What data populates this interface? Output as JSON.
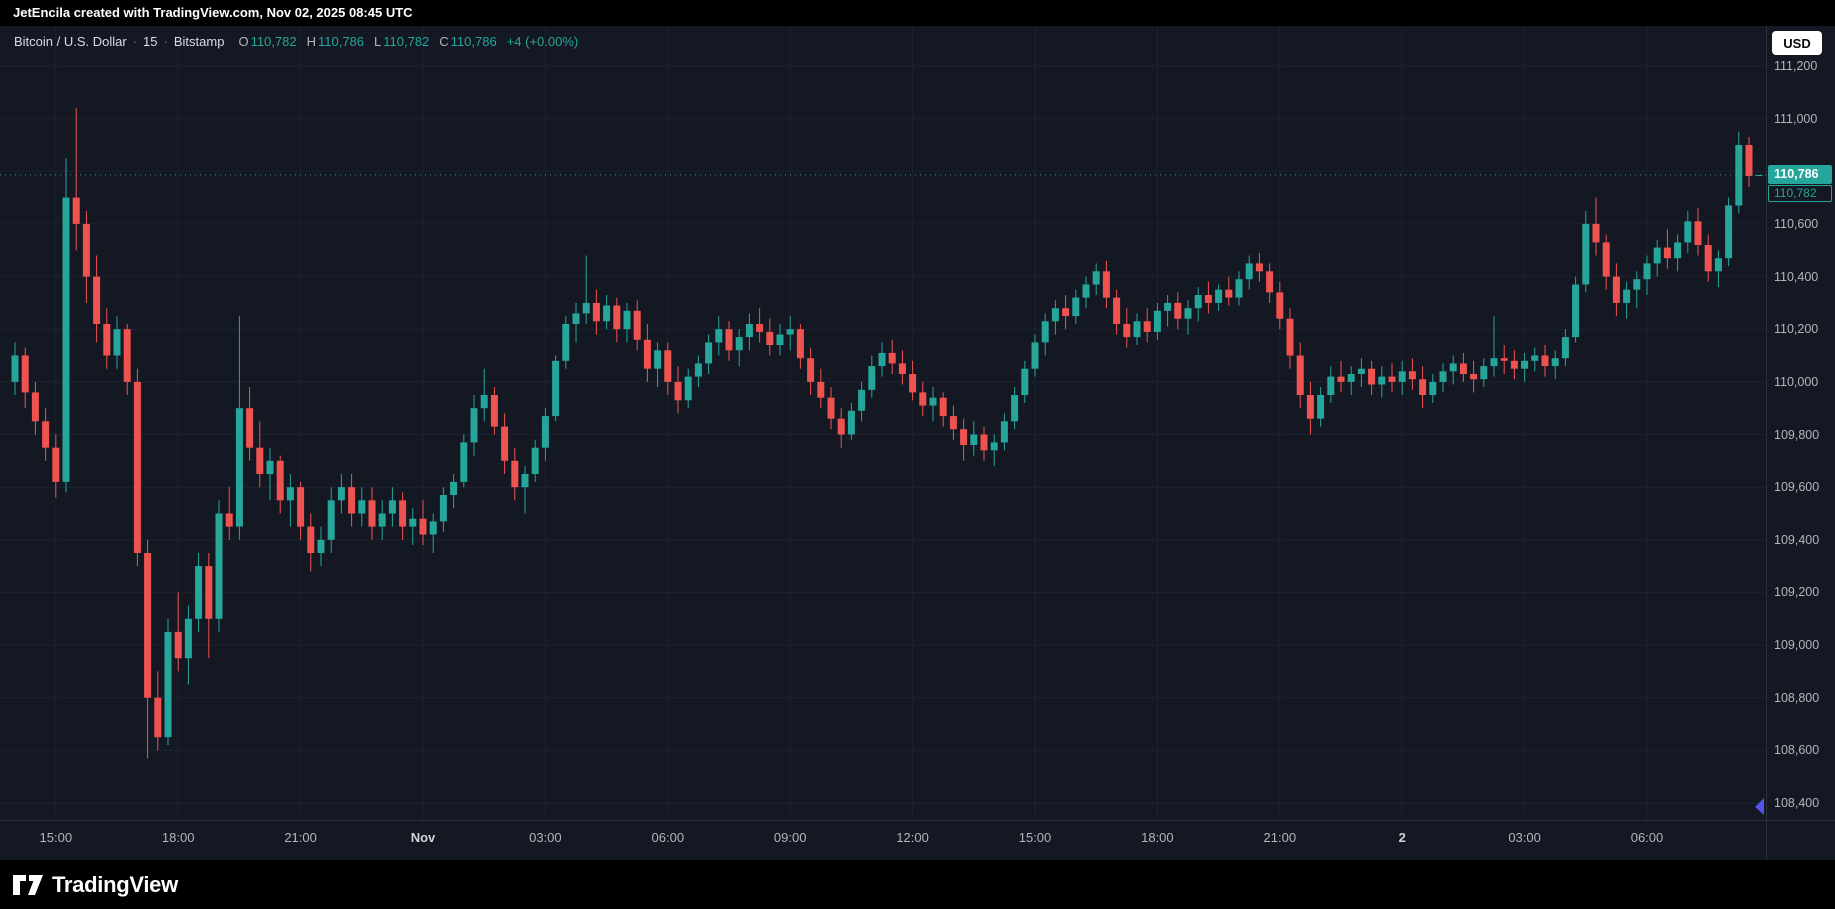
{
  "top_bar": {
    "text": "JetEncila created with TradingView.com, Nov 02, 2025 08:45 UTC"
  },
  "legend": {
    "symbol": "Bitcoin / U.S. Dollar",
    "sep": "·",
    "interval": "15",
    "exchange": "Bitstamp",
    "ohlc": {
      "o_label": "O",
      "o": "110,782",
      "h_label": "H",
      "h": "110,786",
      "l_label": "L",
      "l": "110,782",
      "c_label": "C",
      "c": "110,786",
      "change": "+4 (+0.00%)"
    }
  },
  "price_axis": {
    "currency_button": "USD",
    "last_price_label": "110,786",
    "secondary_price_label": "110,782",
    "labels": [
      {
        "text": "111,200",
        "value": 111200
      },
      {
        "text": "111,000",
        "value": 111000
      },
      {
        "text": "110,800",
        "value": 110800
      },
      {
        "text": "110,600",
        "value": 110600
      },
      {
        "text": "110,400",
        "value": 110400
      },
      {
        "text": "110,200",
        "value": 110200
      },
      {
        "text": "110,000",
        "value": 110000
      },
      {
        "text": "109,800",
        "value": 109800
      },
      {
        "text": "109,600",
        "value": 109600
      },
      {
        "text": "109,400",
        "value": 109400
      },
      {
        "text": "109,200",
        "value": 109200
      },
      {
        "text": "109,000",
        "value": 109000
      },
      {
        "text": "108,800",
        "value": 108800
      },
      {
        "text": "108,600",
        "value": 108600
      },
      {
        "text": "108,400",
        "value": 108400
      }
    ]
  },
  "time_axis": {
    "labels": [
      {
        "text": "15:00",
        "i": 4
      },
      {
        "text": "18:00",
        "i": 16
      },
      {
        "text": "21:00",
        "i": 28
      },
      {
        "text": "Nov",
        "i": 40,
        "emphasis": true
      },
      {
        "text": "03:00",
        "i": 52
      },
      {
        "text": "06:00",
        "i": 64
      },
      {
        "text": "09:00",
        "i": 76
      },
      {
        "text": "12:00",
        "i": 88
      },
      {
        "text": "15:00",
        "i": 100
      },
      {
        "text": "18:00",
        "i": 112
      },
      {
        "text": "21:00",
        "i": 124
      },
      {
        "text": "2",
        "i": 136,
        "emphasis": true
      },
      {
        "text": "03:00",
        "i": 148
      },
      {
        "text": "06:00",
        "i": 160
      }
    ]
  },
  "footer": {
    "brand": "TradingView"
  },
  "colors": {
    "up": "#26a69a",
    "down": "#ef5350",
    "background": "#141823",
    "grid": "#1c2230",
    "axis_text": "#b2b5be",
    "accent_line": "#26a69a",
    "marker": "#5352ed"
  },
  "chart_data": {
    "type": "candlestick",
    "title": "Bitcoin / U.S. Dollar · 15 · Bitstamp",
    "symbol": "Bitcoin / U.S. Dollar",
    "exchange": "Bitstamp",
    "interval_minutes": 15,
    "current_price": 110786,
    "last_ohlc": {
      "open": 110782,
      "high": 110786,
      "low": 110782,
      "close": 110786,
      "change": 4,
      "change_pct": 0.0
    },
    "ylim": [
      108400,
      111200
    ],
    "axis_ticks": [
      108400,
      108600,
      108800,
      109000,
      109200,
      109400,
      109600,
      109800,
      110000,
      110200,
      110400,
      110600,
      110800,
      111000,
      111200
    ],
    "time_label_anchors": [
      {
        "text": "15:00",
        "candle_index": 4
      },
      {
        "text": "18:00",
        "candle_index": 16
      },
      {
        "text": "21:00",
        "candle_index": 28
      },
      {
        "text": "Nov",
        "candle_index": 40
      },
      {
        "text": "03:00",
        "candle_index": 52
      },
      {
        "text": "06:00",
        "candle_index": 64
      },
      {
        "text": "09:00",
        "candle_index": 76
      },
      {
        "text": "12:00",
        "candle_index": 88
      },
      {
        "text": "15:00",
        "candle_index": 100
      },
      {
        "text": "18:00",
        "candle_index": 112
      },
      {
        "text": "21:00",
        "candle_index": 124
      },
      {
        "text": "2",
        "candle_index": 136
      },
      {
        "text": "03:00",
        "candle_index": 148
      },
      {
        "text": "06:00",
        "candle_index": 160
      }
    ],
    "candles": [
      [
        110000,
        110150,
        109950,
        110100
      ],
      [
        110100,
        110130,
        109900,
        109960
      ],
      [
        109960,
        110000,
        109800,
        109850
      ],
      [
        109850,
        109900,
        109700,
        109750
      ],
      [
        109750,
        109800,
        109560,
        109620
      ],
      [
        109620,
        110850,
        109580,
        110700
      ],
      [
        110700,
        111040,
        110500,
        110600
      ],
      [
        110600,
        110650,
        110300,
        110400
      ],
      [
        110400,
        110480,
        110150,
        110220
      ],
      [
        110220,
        110280,
        110050,
        110100
      ],
      [
        110100,
        110250,
        110050,
        110200
      ],
      [
        110200,
        110220,
        109950,
        110000
      ],
      [
        110000,
        110050,
        109300,
        109350
      ],
      [
        109350,
        109400,
        108570,
        108800
      ],
      [
        108800,
        108900,
        108600,
        108650
      ],
      [
        108650,
        109100,
        108620,
        109050
      ],
      [
        109050,
        109200,
        108900,
        108950
      ],
      [
        108950,
        109150,
        108850,
        109100
      ],
      [
        109100,
        109350,
        109050,
        109300
      ],
      [
        109300,
        109350,
        108950,
        109100
      ],
      [
        109100,
        109550,
        109050,
        109500
      ],
      [
        109500,
        109600,
        109400,
        109450
      ],
      [
        109450,
        110250,
        109400,
        109900
      ],
      [
        109900,
        109980,
        109700,
        109750
      ],
      [
        109750,
        109850,
        109600,
        109650
      ],
      [
        109650,
        109750,
        109550,
        109700
      ],
      [
        109700,
        109720,
        109500,
        109550
      ],
      [
        109550,
        109650,
        109450,
        109600
      ],
      [
        109600,
        109620,
        109400,
        109450
      ],
      [
        109450,
        109500,
        109280,
        109350
      ],
      [
        109350,
        109450,
        109300,
        109400
      ],
      [
        109400,
        109600,
        109350,
        109550
      ],
      [
        109550,
        109650,
        109500,
        109600
      ],
      [
        109600,
        109650,
        109450,
        109500
      ],
      [
        109500,
        109600,
        109450,
        109550
      ],
      [
        109550,
        109600,
        109400,
        109450
      ],
      [
        109450,
        109550,
        109400,
        109500
      ],
      [
        109500,
        109600,
        109450,
        109550
      ],
      [
        109550,
        109580,
        109400,
        109450
      ],
      [
        109450,
        109520,
        109380,
        109480
      ],
      [
        109480,
        109550,
        109380,
        109420
      ],
      [
        109420,
        109500,
        109350,
        109470
      ],
      [
        109470,
        109600,
        109430,
        109570
      ],
      [
        109570,
        109650,
        109520,
        109620
      ],
      [
        109620,
        109800,
        109600,
        109770
      ],
      [
        109770,
        109950,
        109720,
        109900
      ],
      [
        109900,
        110050,
        109850,
        109950
      ],
      [
        109950,
        109980,
        109800,
        109830
      ],
      [
        109830,
        109880,
        109650,
        109700
      ],
      [
        109700,
        109750,
        109550,
        109600
      ],
      [
        109600,
        109680,
        109500,
        109650
      ],
      [
        109650,
        109780,
        109620,
        109750
      ],
      [
        109750,
        109900,
        109700,
        109870
      ],
      [
        109870,
        110100,
        109850,
        110080
      ],
      [
        110080,
        110250,
        110050,
        110220
      ],
      [
        110220,
        110300,
        110150,
        110260
      ],
      [
        110260,
        110480,
        110220,
        110300
      ],
      [
        110300,
        110350,
        110180,
        110230
      ],
      [
        110230,
        110330,
        110200,
        110290
      ],
      [
        110290,
        110320,
        110150,
        110200
      ],
      [
        110200,
        110300,
        110150,
        110270
      ],
      [
        110270,
        110310,
        110120,
        110160
      ],
      [
        110160,
        110220,
        110000,
        110050
      ],
      [
        110050,
        110150,
        109980,
        110120
      ],
      [
        110120,
        110150,
        109950,
        110000
      ],
      [
        110000,
        110060,
        109880,
        109930
      ],
      [
        109930,
        110050,
        109900,
        110020
      ],
      [
        110020,
        110100,
        109980,
        110070
      ],
      [
        110070,
        110180,
        110030,
        110150
      ],
      [
        110150,
        110250,
        110100,
        110200
      ],
      [
        110200,
        110230,
        110080,
        110120
      ],
      [
        110120,
        110200,
        110060,
        110170
      ],
      [
        110170,
        110260,
        110120,
        110220
      ],
      [
        110220,
        110280,
        110150,
        110190
      ],
      [
        110190,
        110240,
        110100,
        110140
      ],
      [
        110140,
        110220,
        110100,
        110180
      ],
      [
        110180,
        110250,
        110120,
        110200
      ],
      [
        110200,
        110220,
        110050,
        110090
      ],
      [
        110090,
        110130,
        109950,
        110000
      ],
      [
        110000,
        110050,
        109900,
        109940
      ],
      [
        109940,
        109980,
        109820,
        109860
      ],
      [
        109860,
        109900,
        109750,
        109800
      ],
      [
        109800,
        109920,
        109780,
        109890
      ],
      [
        109890,
        110000,
        109850,
        109970
      ],
      [
        109970,
        110100,
        109940,
        110060
      ],
      [
        110060,
        110150,
        110020,
        110110
      ],
      [
        110110,
        110160,
        110030,
        110070
      ],
      [
        110070,
        110120,
        109990,
        110030
      ],
      [
        110030,
        110080,
        109930,
        109960
      ],
      [
        109960,
        110000,
        109870,
        109910
      ],
      [
        109910,
        109980,
        109850,
        109940
      ],
      [
        109940,
        109960,
        109830,
        109870
      ],
      [
        109870,
        109910,
        109780,
        109820
      ],
      [
        109820,
        109860,
        109700,
        109760
      ],
      [
        109760,
        109850,
        109720,
        109800
      ],
      [
        109800,
        109830,
        109700,
        109740
      ],
      [
        109740,
        109800,
        109680,
        109770
      ],
      [
        109770,
        109880,
        109740,
        109850
      ],
      [
        109850,
        109980,
        109820,
        109950
      ],
      [
        109950,
        110080,
        109920,
        110050
      ],
      [
        110050,
        110180,
        110020,
        110150
      ],
      [
        110150,
        110260,
        110100,
        110230
      ],
      [
        110230,
        110310,
        110180,
        110280
      ],
      [
        110280,
        110330,
        110200,
        110250
      ],
      [
        110250,
        110350,
        110220,
        110320
      ],
      [
        110320,
        110400,
        110280,
        110370
      ],
      [
        110370,
        110450,
        110330,
        110420
      ],
      [
        110420,
        110460,
        110280,
        110320
      ],
      [
        110320,
        110350,
        110180,
        110220
      ],
      [
        110220,
        110280,
        110130,
        110170
      ],
      [
        110170,
        110260,
        110140,
        110230
      ],
      [
        110230,
        110280,
        110150,
        110190
      ],
      [
        110190,
        110300,
        110160,
        110270
      ],
      [
        110270,
        110330,
        110210,
        110300
      ],
      [
        110300,
        110340,
        110200,
        110240
      ],
      [
        110240,
        110310,
        110180,
        110280
      ],
      [
        110280,
        110360,
        110230,
        110330
      ],
      [
        110330,
        110380,
        110260,
        110300
      ],
      [
        110300,
        110370,
        110270,
        110350
      ],
      [
        110350,
        110400,
        110290,
        110320
      ],
      [
        110320,
        110420,
        110290,
        110390
      ],
      [
        110390,
        110480,
        110350,
        110450
      ],
      [
        110450,
        110490,
        110380,
        110420
      ],
      [
        110420,
        110450,
        110300,
        110340
      ],
      [
        110340,
        110380,
        110200,
        110240
      ],
      [
        110240,
        110280,
        110050,
        110100
      ],
      [
        110100,
        110150,
        109900,
        109950
      ],
      [
        109950,
        110000,
        109800,
        109860
      ],
      [
        109860,
        109980,
        109830,
        109950
      ],
      [
        109950,
        110060,
        109920,
        110020
      ],
      [
        110020,
        110080,
        109960,
        110000
      ],
      [
        110000,
        110060,
        109950,
        110030
      ],
      [
        110030,
        110090,
        109980,
        110050
      ],
      [
        110050,
        110080,
        109950,
        109990
      ],
      [
        109990,
        110060,
        109940,
        110020
      ],
      [
        110020,
        110070,
        109960,
        110000
      ],
      [
        110000,
        110080,
        109950,
        110040
      ],
      [
        110040,
        110090,
        109970,
        110010
      ],
      [
        110010,
        110060,
        109900,
        109950
      ],
      [
        109950,
        110030,
        109920,
        110000
      ],
      [
        110000,
        110070,
        109960,
        110040
      ],
      [
        110040,
        110100,
        109990,
        110070
      ],
      [
        110070,
        110110,
        110000,
        110030
      ],
      [
        110030,
        110080,
        109960,
        110010
      ],
      [
        110010,
        110090,
        109980,
        110060
      ],
      [
        110060,
        110250,
        110020,
        110090
      ],
      [
        110090,
        110140,
        110030,
        110080
      ],
      [
        110080,
        110120,
        110010,
        110050
      ],
      [
        110050,
        110110,
        110000,
        110080
      ],
      [
        110080,
        110130,
        110040,
        110100
      ],
      [
        110100,
        110140,
        110020,
        110060
      ],
      [
        110060,
        110120,
        110010,
        110090
      ],
      [
        110090,
        110200,
        110060,
        110170
      ],
      [
        110170,
        110400,
        110150,
        110370
      ],
      [
        110370,
        110650,
        110340,
        110600
      ],
      [
        110600,
        110700,
        110480,
        110530
      ],
      [
        110530,
        110560,
        110350,
        110400
      ],
      [
        110400,
        110450,
        110250,
        110300
      ],
      [
        110300,
        110380,
        110240,
        110350
      ],
      [
        110350,
        110420,
        110280,
        110390
      ],
      [
        110390,
        110480,
        110330,
        110450
      ],
      [
        110450,
        110540,
        110400,
        110510
      ],
      [
        110510,
        110580,
        110430,
        110470
      ],
      [
        110470,
        110560,
        110420,
        110530
      ],
      [
        110530,
        110650,
        110490,
        110610
      ],
      [
        110610,
        110660,
        110480,
        110520
      ],
      [
        110520,
        110560,
        110380,
        110420
      ],
      [
        110420,
        110500,
        110360,
        110470
      ],
      [
        110470,
        110700,
        110440,
        110670
      ],
      [
        110670,
        110950,
        110640,
        110900
      ],
      [
        110900,
        110930,
        110740,
        110782
      ],
      [
        110782,
        110786,
        110782,
        110786
      ]
    ]
  }
}
